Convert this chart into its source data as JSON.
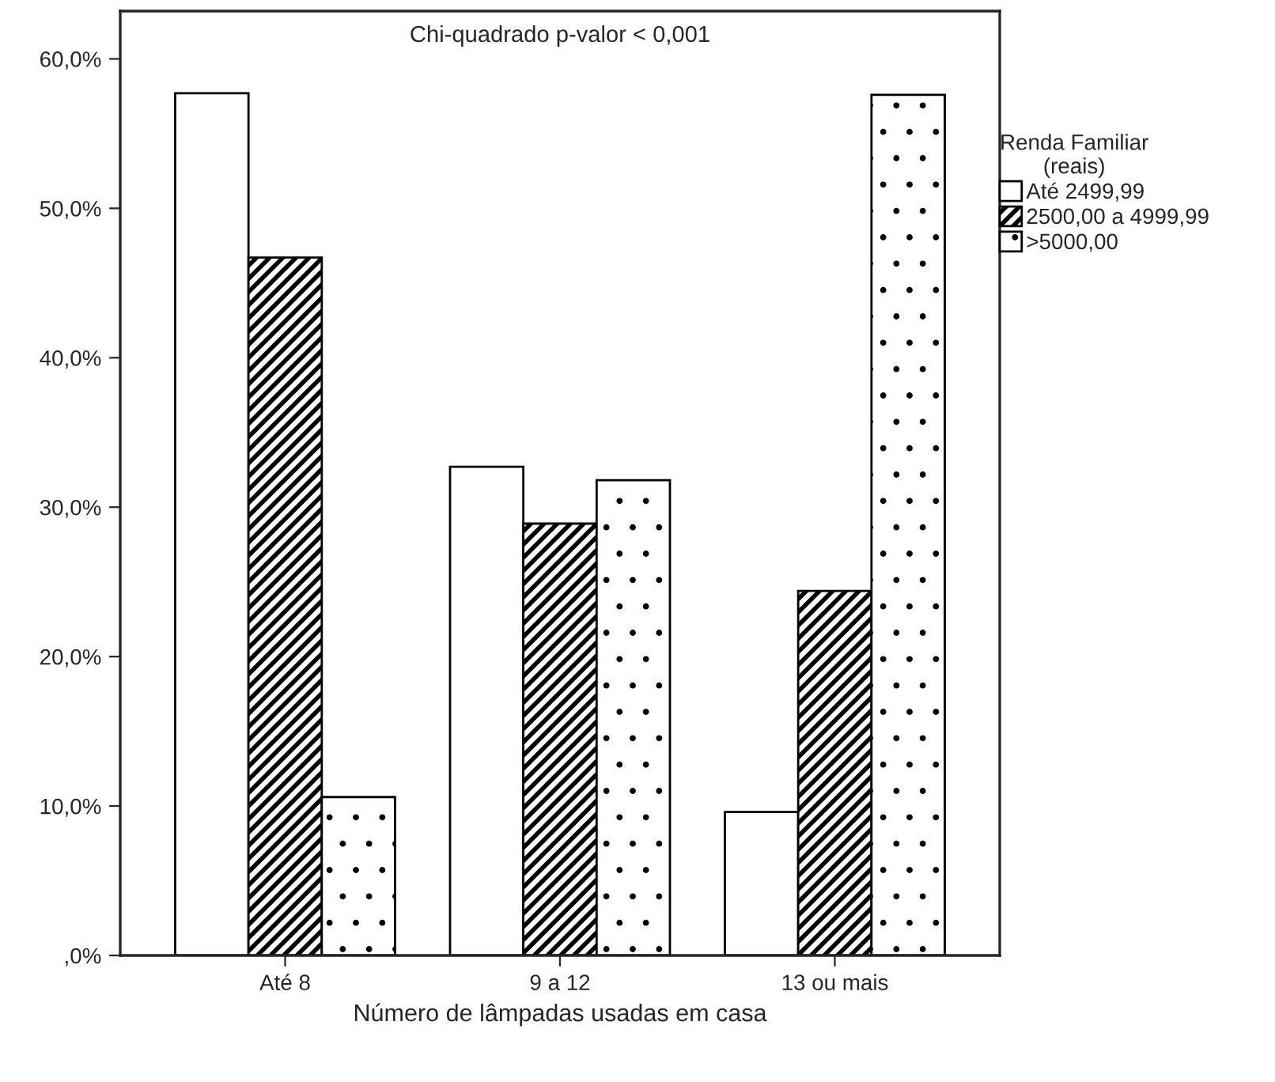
{
  "chart_data": {
    "type": "bar",
    "xlabel": "Número de lâmpadas usadas em casa",
    "legend_title": "Renda Familiar\n(reais)",
    "annotations": [
      "Chi-quadrado p-valor < 0,001"
    ],
    "categories": [
      "Até 8",
      "9 a 12",
      "13 ou mais"
    ],
    "series": [
      {
        "name": "Até 2499,99",
        "color": "#ffffff",
        "values": [
          57.7,
          32.7,
          9.6
        ]
      },
      {
        "name": "2500,00 a 4999,99",
        "color": "#000000",
        "values": [
          46.7,
          28.9,
          24.4
        ]
      },
      {
        "name": ">5000,00",
        "color": "#000000",
        "values": [
          10.6,
          31.8,
          57.6
        ]
      }
    ],
    "ylim": [
      0,
      63.2
    ],
    "yticks": [
      {
        "value": 0,
        "label": ",0%"
      },
      {
        "value": 10,
        "label": "10,0%"
      },
      {
        "value": 20,
        "label": "20,0%"
      },
      {
        "value": 30,
        "label": "30,0%"
      },
      {
        "value": 40,
        "label": "40,0%"
      },
      {
        "value": 50,
        "label": "50,0%"
      },
      {
        "value": 60,
        "label": "60,0%"
      }
    ],
    "grid": false,
    "legend": "right"
  }
}
